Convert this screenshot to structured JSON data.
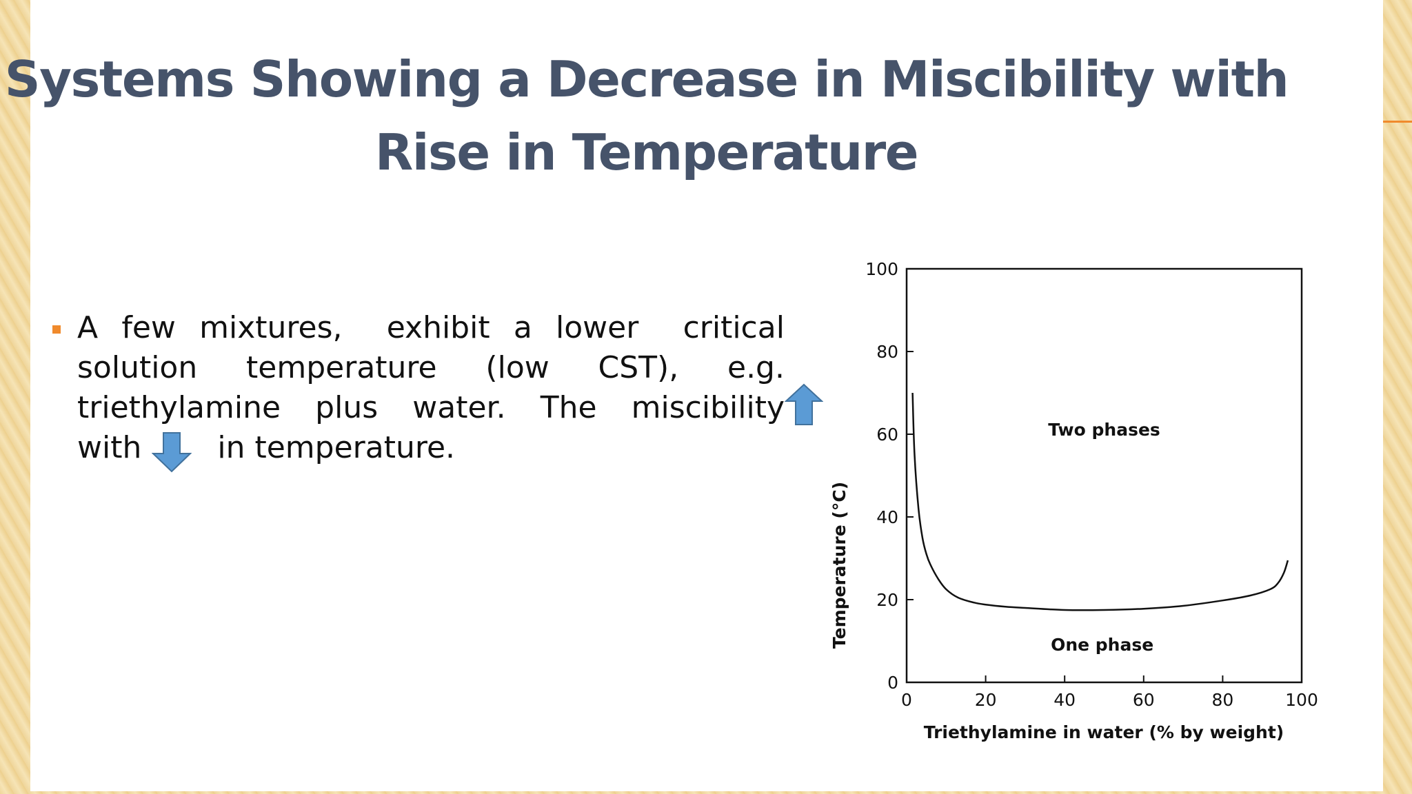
{
  "slide": {
    "title_lines": [
      "Systems Showing a Decrease in Miscibility with",
      "Rise in Temperature"
    ]
  },
  "bullet": {
    "line1": [
      "A",
      "few",
      "mixtures,",
      "exhibit",
      "a",
      "lower",
      "critical"
    ],
    "line2": [
      "solution",
      "temperature",
      "(low",
      "CST),",
      "e.g."
    ],
    "line3": [
      "triethylamine",
      "plus",
      "water.",
      "The",
      "miscibility"
    ],
    "line4_pre": "with",
    "line4_post": "in temperature.",
    "arrow_up_icon": "arrow-up-icon",
    "arrow_down_icon": "arrow-down-icon",
    "arrow_color": "#5b9bd5",
    "marker_color": "#f08a2c"
  },
  "chart_data": {
    "type": "line",
    "xlabel": "Triethylamine in water (% by weight)",
    "ylabel": "Temperature (°C)",
    "xlim": [
      0,
      100
    ],
    "ylim": [
      0,
      100
    ],
    "xticks": [
      0,
      20,
      40,
      60,
      80,
      100
    ],
    "yticks": [
      0,
      20,
      40,
      60,
      80,
      100
    ],
    "grid": false,
    "series": [
      {
        "x": [
          1.5,
          2,
          3,
          4,
          5,
          6,
          8,
          10,
          13,
          17,
          20,
          25,
          30,
          40,
          50,
          60,
          70,
          80,
          87,
          92,
          94,
          95.5,
          96.5
        ],
        "y": [
          70,
          55,
          42,
          35,
          31,
          28.5,
          25,
          22.5,
          20.5,
          19.3,
          18.8,
          18.3,
          18,
          17.5,
          17.5,
          17.8,
          18.5,
          19.8,
          21,
          22.5,
          24,
          26.5,
          29.5
        ]
      }
    ],
    "annotations": [
      {
        "text": "Two phases",
        "x": 50,
        "y": 61
      },
      {
        "text": "One phase",
        "x": 49.5,
        "y": 9
      }
    ]
  }
}
